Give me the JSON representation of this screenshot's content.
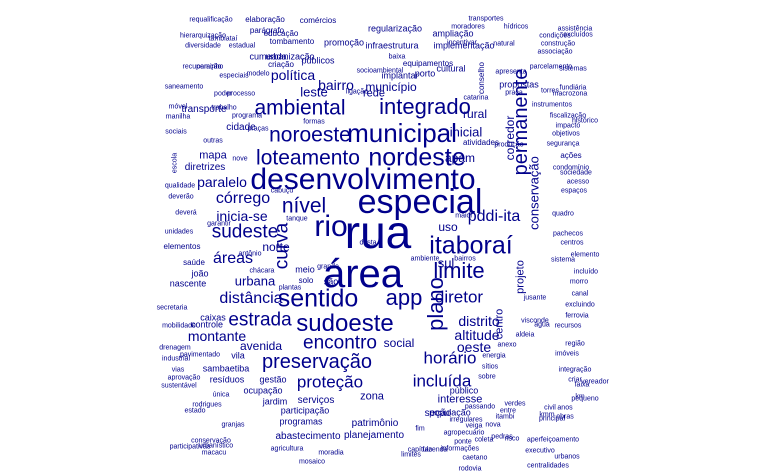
{
  "color": "#00008B",
  "words": [
    "rua",
    "área",
    "especial",
    "desenvolvimento",
    "rio",
    "itaboraí",
    "sentido",
    "app",
    "sudoeste",
    "municipal",
    "nordeste",
    "integrado",
    "loteamento",
    "limite",
    "noroeste",
    "ambiental",
    "nível",
    "plano",
    "curva",
    "estrada",
    "preservação",
    "encontro",
    "permanente",
    "sudeste",
    "diretor",
    "horário",
    "incluída",
    "proteção",
    "pddi-ita",
    "córrego",
    "áreas",
    "distância",
    "paralelo",
    "inicia-se",
    "urbana",
    "montante",
    "distrito",
    "altitude",
    "política",
    "município",
    "bairro",
    "leste",
    "rede",
    "apam",
    "inicial",
    "rural",
    "corredor",
    "conservação",
    "avenida",
    "social",
    "oeste",
    "sul",
    "uso",
    "norte",
    "centro",
    "projeto",
    "mapa",
    "diretrizes",
    "cidade",
    "transporte",
    "zona",
    "interesse",
    "serviços",
    "seção",
    "público",
    "população",
    "patrimônio",
    "planejamento",
    "abastecimento",
    "participação",
    "programas",
    "ocupação",
    "gestão",
    "jardim",
    "resíduos",
    "vila",
    "sambaetiba",
    "caixas",
    "controle",
    "são",
    "solo",
    "meio",
    "joão",
    "nascente",
    "saúde",
    "elementos",
    "cumeada",
    "públicos",
    "regularização",
    "infraestrutura",
    "implantar",
    "equipamentos",
    "cultural",
    "porto",
    "implementação",
    "ampliação",
    "urbanização",
    "promoção",
    "educação",
    "criação",
    "tombamento",
    "comércios",
    "elaboração",
    "parágrafo",
    "requalificação",
    "hierarquização",
    "diversidade",
    "tambiataí",
    "caminho",
    "estadual",
    "especiais",
    "recuperação",
    "modelo",
    "conselho",
    "propostas",
    "atividades",
    "produção",
    "ações",
    "fiscalização",
    "instrumentos",
    "parcelamento",
    "hídricos",
    "transportes",
    "moradores",
    "incentivar",
    "baixa",
    "natural",
    "associação",
    "construção",
    "saneamento",
    "sistemas",
    "ferrovia",
    "região",
    "excluindo",
    "morro",
    "canal",
    "anexo",
    "recursos",
    "aldeia",
    "água",
    "visconde",
    "imóveis",
    "segurança",
    "impacto",
    "objetivos",
    "condomínio",
    "acesso",
    "espaços",
    "quadro",
    "centros",
    "sistema",
    "incluído",
    "jusante",
    "verdes",
    "agricultura",
    "moradia",
    "limites",
    "fazenda",
    "executivo",
    "urbanos",
    "informações",
    "agropecuário",
    "ponte",
    "rodrigues",
    "única",
    "vias",
    "aprovação",
    "sustentável",
    "pavimentado",
    "industrial",
    "mobilidade",
    "secretaria",
    "pachecos",
    "drenagem",
    "unidades",
    "deverão",
    "deverá",
    "qualidade",
    "escola",
    "sociais",
    "manilha",
    "móvel",
    "poder",
    "trabalho",
    "processo",
    "programa",
    "praças",
    "formas",
    "desta",
    "ambiente",
    "bairros",
    "maior",
    "rodovia",
    "itambi",
    "anos",
    "obras",
    "km",
    "faixa",
    "pequeno",
    "vereador",
    "estado",
    "participativas",
    "macacu",
    "granjas",
    "mosaico",
    "conservação",
    "capítulo",
    "caetano",
    "aperfeiçoamento",
    "centralidades",
    "assistência",
    "condições",
    "excluídos",
    "fundiária",
    "histórico",
    "sociedade",
    "catarina",
    "ligação",
    "socioambiental",
    "praça",
    "apresenta",
    "elemento",
    "torres",
    "outras",
    "macrozona",
    "criar",
    "sobre",
    "entre",
    "integração",
    "sítios",
    "passando",
    "pedras",
    "urbanístico",
    "energia",
    "irregulares",
    "garantir",
    "antônio",
    "chácara",
    "plantas",
    "grande",
    "tanque",
    "cabuçu",
    "nove",
    "fim",
    "veiga",
    "coleta",
    "nova",
    "risco",
    "civil",
    "kmm",
    "principal",
    "terreno",
    "turismo",
    "curto",
    "locais",
    "atuação",
    "zurbe",
    "esporte",
    "setores",
    "destinadas",
    "dentro"
  ]
}
